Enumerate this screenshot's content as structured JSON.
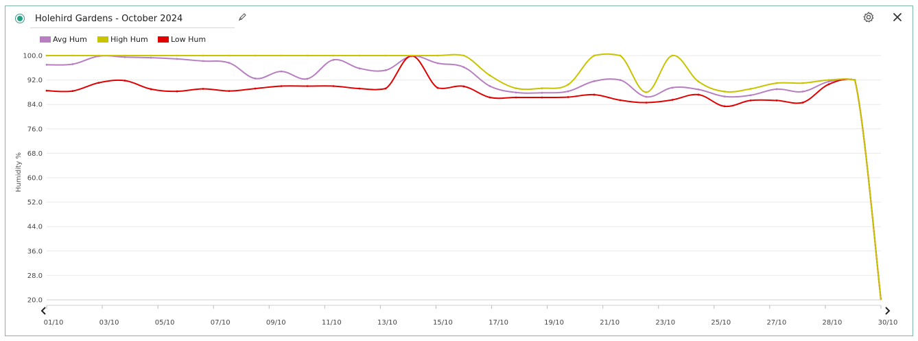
{
  "header": {
    "title": "Holehird Gardens - October 2024",
    "status_icon": "radio-on-icon",
    "edit_icon": "pencil-icon",
    "settings_icon": "gear-icon",
    "close_icon": "close-icon"
  },
  "colors": {
    "border": "#7fb5ad",
    "status": "#23a081",
    "avg": "#b77fc1",
    "high": "#c8c400",
    "low": "#e00000"
  },
  "chart_data": {
    "type": "line",
    "title": "",
    "xlabel": "",
    "ylabel": "Humidity %",
    "ylim": [
      20,
      100
    ],
    "yticks": [
      "100.0",
      "92.0",
      "84.0",
      "76.0",
      "68.0",
      "60.0",
      "52.0",
      "44.0",
      "36.0",
      "28.0",
      "20.0"
    ],
    "xticks": [
      "01/10",
      "03/10",
      "05/10",
      "07/10",
      "09/10",
      "11/10",
      "13/10",
      "15/10",
      "17/10",
      "19/10",
      "21/10",
      "23/10",
      "25/10",
      "27/10",
      "28/10",
      "30/10"
    ],
    "grid": true,
    "legend_position": "top-left",
    "series": [
      {
        "name": "Avg Hum",
        "color": "#b77fc1",
        "points": [
          [
            0,
            97
          ],
          [
            1,
            97.2
          ],
          [
            2,
            99.8
          ],
          [
            3,
            99.5
          ],
          [
            4,
            99.3
          ],
          [
            5,
            98.9
          ],
          [
            6,
            98.2
          ],
          [
            7,
            97.6
          ],
          [
            8,
            92.5
          ],
          [
            9,
            94.8
          ],
          [
            10,
            92.4
          ],
          [
            11,
            98.6
          ],
          [
            12,
            95.8
          ],
          [
            13,
            95.2
          ],
          [
            14,
            99.8
          ],
          [
            15,
            97.5
          ],
          [
            16,
            96.2
          ],
          [
            17,
            90
          ],
          [
            18,
            87.9
          ],
          [
            19,
            87.8
          ],
          [
            20,
            88.3
          ],
          [
            21,
            91.6
          ],
          [
            22,
            92
          ],
          [
            23,
            86.5
          ],
          [
            24,
            89.5
          ],
          [
            25,
            88.9
          ],
          [
            26,
            86.6
          ],
          [
            27,
            87
          ],
          [
            28,
            89
          ],
          [
            29,
            88.2
          ],
          [
            30,
            91.5
          ],
          [
            31,
            92
          ],
          [
            32,
            20
          ]
        ]
      },
      {
        "name": "High Hum",
        "color": "#c8c400",
        "points": [
          [
            0,
            100
          ],
          [
            1,
            100
          ],
          [
            2,
            100
          ],
          [
            3,
            100
          ],
          [
            4,
            100
          ],
          [
            5,
            100
          ],
          [
            6,
            100
          ],
          [
            7,
            100
          ],
          [
            8,
            100
          ],
          [
            9,
            100
          ],
          [
            10,
            100
          ],
          [
            11,
            100
          ],
          [
            12,
            100
          ],
          [
            13,
            100
          ],
          [
            14,
            100
          ],
          [
            15,
            100
          ],
          [
            16,
            100
          ],
          [
            17,
            93.5
          ],
          [
            18,
            89.3
          ],
          [
            19,
            89.3
          ],
          [
            20,
            90.5
          ],
          [
            21,
            100
          ],
          [
            22,
            100
          ],
          [
            23,
            88
          ],
          [
            24,
            100
          ],
          [
            25,
            91.5
          ],
          [
            26,
            88.2
          ],
          [
            27,
            89.1
          ],
          [
            28,
            91
          ],
          [
            29,
            91
          ],
          [
            30,
            92
          ],
          [
            31,
            92
          ],
          [
            32,
            20
          ]
        ]
      },
      {
        "name": "Low Hum",
        "color": "#e00000",
        "points": [
          [
            0,
            88.5
          ],
          [
            1,
            88.4
          ],
          [
            2,
            91.1
          ],
          [
            3,
            91.8
          ],
          [
            4,
            89
          ],
          [
            5,
            88.3
          ],
          [
            6,
            89.1
          ],
          [
            7,
            88.4
          ],
          [
            8,
            89.2
          ],
          [
            9,
            90
          ],
          [
            10,
            90
          ],
          [
            11,
            90
          ],
          [
            12,
            89.2
          ],
          [
            13,
            89.2
          ],
          [
            14,
            99.9
          ],
          [
            15,
            89.4
          ],
          [
            16,
            89.9
          ],
          [
            17,
            86.3
          ],
          [
            18,
            86.3
          ],
          [
            19,
            86.3
          ],
          [
            20,
            86.4
          ],
          [
            21,
            87.2
          ],
          [
            22,
            85.4
          ],
          [
            23,
            84.6
          ],
          [
            24,
            85.5
          ],
          [
            25,
            87.2
          ],
          [
            26,
            83.4
          ],
          [
            27,
            85.3
          ],
          [
            28,
            85.3
          ],
          [
            29,
            84.6
          ],
          [
            30,
            90.6
          ],
          [
            31,
            92
          ],
          [
            32,
            20
          ]
        ]
      }
    ]
  }
}
